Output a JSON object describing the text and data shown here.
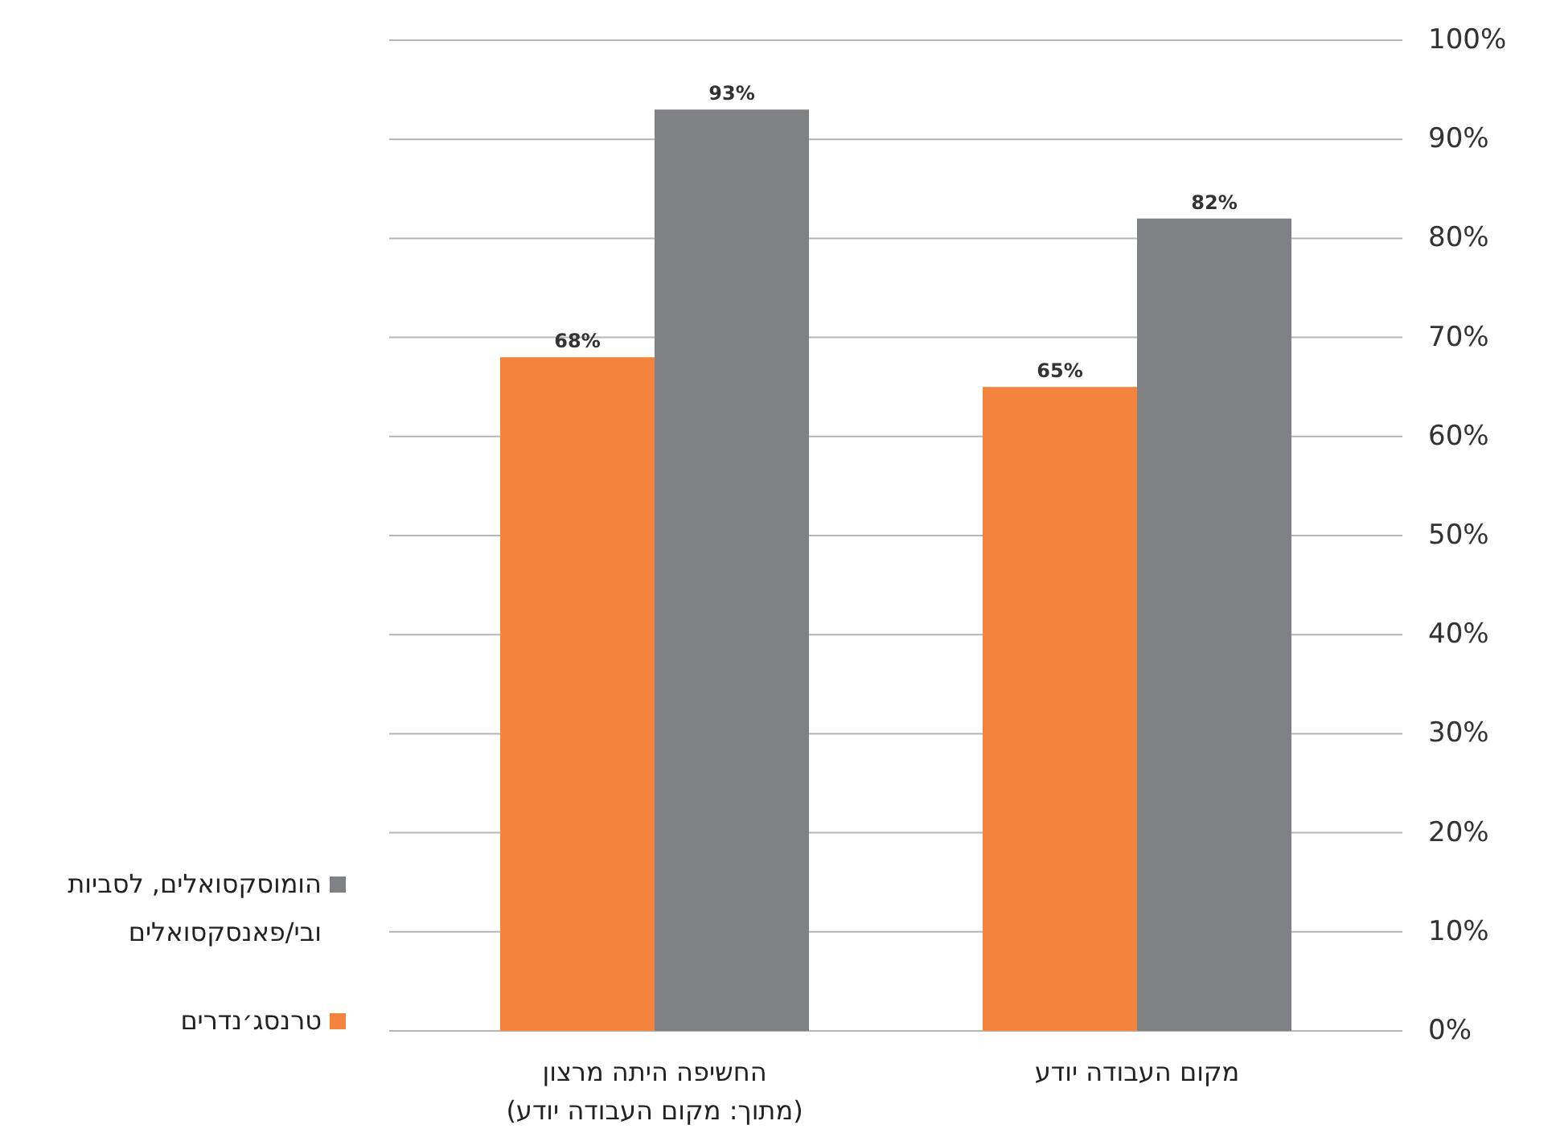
{
  "chart_data": {
    "type": "bar",
    "categories": [
      "החשיפה היתה מרצון (מתוך: מקום העבודה יודע)",
      "מקום העבודה יודע"
    ],
    "series": [
      {
        "name": "טרנסג׳נדרים",
        "color": "#f4843d",
        "values": [
          68,
          65
        ],
        "value_labels": [
          "68%",
          "65%"
        ]
      },
      {
        "name": "הומוסקסואלים, לסביות ובי/פאנסקסואלים",
        "color": "#808185",
        "values": [
          93,
          82
        ],
        "value_labels": [
          "93%",
          "82%"
        ]
      }
    ],
    "ylim": [
      0,
      100
    ],
    "yticks": [
      {
        "value": 0,
        "label": "0%"
      },
      {
        "value": 10,
        "label": "10%"
      },
      {
        "value": 20,
        "label": "20%"
      },
      {
        "value": 30,
        "label": "30%"
      },
      {
        "value": 40,
        "label": "40%"
      },
      {
        "value": 50,
        "label": "50%"
      },
      {
        "value": 60,
        "label": "60%"
      },
      {
        "value": 70,
        "label": "70%"
      },
      {
        "value": 80,
        "label": "80%"
      },
      {
        "value": 90,
        "label": "90%"
      },
      {
        "value": 100,
        "label": "100%"
      }
    ],
    "grid": "y",
    "legend": "bottom left"
  }
}
